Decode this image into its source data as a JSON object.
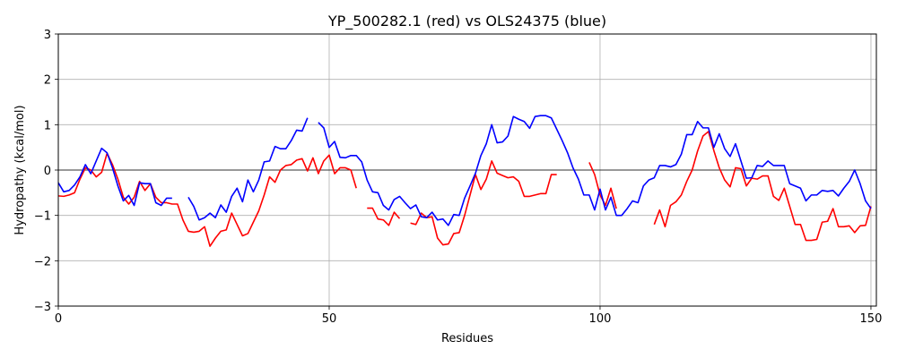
{
  "chart_data": {
    "type": "line",
    "title": "YP_500282.1 (red) vs OLS24375 (blue)",
    "xlabel": "Residues",
    "ylabel": "Hydropathy (kcal/mol)",
    "xlim": [
      0,
      151
    ],
    "ylim": [
      -3,
      3
    ],
    "xticks": [
      0,
      50,
      100,
      150
    ],
    "yticks": [
      -3,
      -2,
      -1,
      0,
      1,
      2,
      3
    ],
    "grid": true,
    "zero_line": true,
    "series": [
      {
        "color": "#ff0000",
        "segments": [
          [
            [
              0,
              -0.57
            ],
            [
              1,
              -0.58
            ],
            [
              2,
              -0.55
            ],
            [
              3,
              -0.5
            ],
            [
              4,
              -0.2
            ],
            [
              5,
              0.05
            ],
            [
              6,
              0.0
            ],
            [
              7,
              -0.15
            ],
            [
              8,
              -0.05
            ],
            [
              9,
              0.37
            ],
            [
              10,
              0.12
            ],
            [
              11,
              -0.2
            ],
            [
              12,
              -0.6
            ],
            [
              13,
              -0.75
            ],
            [
              14,
              -0.6
            ],
            [
              15,
              -0.25
            ],
            [
              16,
              -0.45
            ],
            [
              17,
              -0.3
            ],
            [
              18,
              -0.6
            ],
            [
              19,
              -0.72
            ],
            [
              20,
              -0.72
            ],
            [
              21,
              -0.75
            ],
            [
              22,
              -0.75
            ],
            [
              23,
              -1.1
            ],
            [
              24,
              -1.35
            ],
            [
              25,
              -1.37
            ],
            [
              26,
              -1.35
            ],
            [
              27,
              -1.25
            ],
            [
              28,
              -1.68
            ],
            [
              29,
              -1.5
            ],
            [
              30,
              -1.35
            ],
            [
              31,
              -1.32
            ],
            [
              32,
              -0.95
            ],
            [
              33,
              -1.2
            ],
            [
              34,
              -1.45
            ],
            [
              35,
              -1.4
            ],
            [
              36,
              -1.15
            ],
            [
              37,
              -0.9
            ],
            [
              38,
              -0.55
            ],
            [
              39,
              -0.15
            ],
            [
              40,
              -0.27
            ],
            [
              41,
              0.0
            ],
            [
              42,
              0.1
            ],
            [
              43,
              0.12
            ],
            [
              44,
              0.22
            ],
            [
              45,
              0.25
            ],
            [
              46,
              -0.02
            ],
            [
              47,
              0.27
            ],
            [
              48,
              -0.08
            ],
            [
              49,
              0.2
            ],
            [
              50,
              0.33
            ],
            [
              51,
              -0.08
            ],
            [
              52,
              0.05
            ],
            [
              53,
              0.05
            ],
            [
              54,
              0.0
            ],
            [
              55,
              -0.4
            ]
          ],
          [
            [
              57,
              -0.84
            ],
            [
              58,
              -0.84
            ],
            [
              59,
              -1.08
            ],
            [
              60,
              -1.1
            ],
            [
              61,
              -1.22
            ],
            [
              62,
              -0.93
            ],
            [
              63,
              -1.07
            ]
          ],
          [
            [
              65,
              -1.17
            ],
            [
              66,
              -1.2
            ],
            [
              67,
              -0.95
            ],
            [
              68,
              -1.05
            ],
            [
              69,
              -1.03
            ],
            [
              70,
              -1.5
            ],
            [
              71,
              -1.65
            ],
            [
              72,
              -1.63
            ],
            [
              73,
              -1.4
            ],
            [
              74,
              -1.38
            ],
            [
              75,
              -1.0
            ],
            [
              76,
              -0.55
            ],
            [
              77,
              -0.1
            ],
            [
              78,
              -0.43
            ],
            [
              79,
              -0.2
            ],
            [
              80,
              0.2
            ],
            [
              81,
              -0.07
            ],
            [
              82,
              -0.12
            ],
            [
              83,
              -0.17
            ],
            [
              84,
              -0.15
            ],
            [
              85,
              -0.25
            ],
            [
              86,
              -0.58
            ],
            [
              87,
              -0.58
            ],
            [
              88,
              -0.55
            ],
            [
              89,
              -0.52
            ],
            [
              90,
              -0.52
            ],
            [
              91,
              -0.1
            ],
            [
              92,
              -0.1
            ]
          ],
          [
            [
              98,
              0.17
            ],
            [
              99,
              -0.1
            ],
            [
              100,
              -0.55
            ],
            [
              101,
              -0.78
            ],
            [
              102,
              -0.4
            ],
            [
              103,
              -0.85
            ]
          ],
          [
            [
              110,
              -1.2
            ],
            [
              111,
              -0.88
            ],
            [
              112,
              -1.25
            ],
            [
              113,
              -0.78
            ],
            [
              114,
              -0.7
            ],
            [
              115,
              -0.55
            ],
            [
              116,
              -0.25
            ],
            [
              117,
              0.0
            ],
            [
              118,
              0.42
            ],
            [
              119,
              0.75
            ],
            [
              120,
              0.85
            ],
            [
              121,
              0.43
            ],
            [
              122,
              0.05
            ],
            [
              123,
              -0.22
            ],
            [
              124,
              -0.37
            ],
            [
              125,
              0.05
            ],
            [
              126,
              0.03
            ],
            [
              127,
              -0.35
            ],
            [
              128,
              -0.18
            ],
            [
              129,
              -0.2
            ],
            [
              130,
              -0.13
            ],
            [
              131,
              -0.13
            ],
            [
              132,
              -0.58
            ],
            [
              133,
              -0.67
            ],
            [
              134,
              -0.4
            ],
            [
              135,
              -0.8
            ],
            [
              136,
              -1.2
            ],
            [
              137,
              -1.2
            ],
            [
              138,
              -1.55
            ],
            [
              139,
              -1.55
            ],
            [
              140,
              -1.53
            ],
            [
              141,
              -1.15
            ],
            [
              142,
              -1.13
            ],
            [
              143,
              -0.85
            ],
            [
              144,
              -1.25
            ],
            [
              145,
              -1.25
            ],
            [
              146,
              -1.23
            ],
            [
              147,
              -1.38
            ],
            [
              148,
              -1.23
            ],
            [
              149,
              -1.22
            ],
            [
              150,
              -0.8
            ]
          ]
        ]
      },
      {
        "color": "#0000ff",
        "segments": [
          [
            [
              0,
              -0.28
            ],
            [
              1,
              -0.48
            ],
            [
              2,
              -0.45
            ],
            [
              3,
              -0.33
            ],
            [
              4,
              -0.15
            ],
            [
              5,
              0.12
            ],
            [
              6,
              -0.08
            ],
            [
              7,
              0.2
            ],
            [
              8,
              0.48
            ],
            [
              9,
              0.38
            ],
            [
              10,
              0.05
            ],
            [
              11,
              -0.35
            ],
            [
              12,
              -0.68
            ],
            [
              13,
              -0.56
            ],
            [
              14,
              -0.78
            ],
            [
              15,
              -0.28
            ],
            [
              16,
              -0.3
            ],
            [
              17,
              -0.3
            ],
            [
              18,
              -0.72
            ],
            [
              19,
              -0.78
            ],
            [
              20,
              -0.62
            ],
            [
              21,
              -0.62
            ]
          ],
          [
            [
              24,
              -0.6
            ],
            [
              25,
              -0.8
            ],
            [
              26,
              -1.1
            ],
            [
              27,
              -1.05
            ],
            [
              28,
              -0.95
            ],
            [
              29,
              -1.05
            ],
            [
              30,
              -0.77
            ],
            [
              31,
              -0.93
            ],
            [
              32,
              -0.58
            ],
            [
              33,
              -0.4
            ],
            [
              34,
              -0.7
            ],
            [
              35,
              -0.22
            ],
            [
              36,
              -0.48
            ],
            [
              37,
              -0.22
            ],
            [
              38,
              0.18
            ],
            [
              39,
              0.2
            ],
            [
              40,
              0.52
            ],
            [
              41,
              0.47
            ],
            [
              42,
              0.47
            ],
            [
              43,
              0.65
            ],
            [
              44,
              0.88
            ],
            [
              45,
              0.86
            ],
            [
              46,
              1.15
            ]
          ],
          [
            [
              48,
              1.05
            ],
            [
              49,
              0.93
            ],
            [
              50,
              0.5
            ],
            [
              51,
              0.63
            ],
            [
              52,
              0.28
            ],
            [
              53,
              0.27
            ],
            [
              54,
              0.32
            ],
            [
              55,
              0.32
            ],
            [
              56,
              0.18
            ],
            [
              57,
              -0.22
            ],
            [
              58,
              -0.48
            ],
            [
              59,
              -0.5
            ],
            [
              60,
              -0.78
            ],
            [
              61,
              -0.88
            ],
            [
              62,
              -0.65
            ],
            [
              63,
              -0.58
            ],
            [
              64,
              -0.72
            ],
            [
              65,
              -0.85
            ],
            [
              66,
              -0.77
            ],
            [
              67,
              -1.03
            ],
            [
              68,
              -1.05
            ],
            [
              69,
              -0.93
            ],
            [
              70,
              -1.1
            ],
            [
              71,
              -1.08
            ],
            [
              72,
              -1.22
            ],
            [
              73,
              -0.98
            ],
            [
              74,
              -1.0
            ],
            [
              75,
              -0.62
            ],
            [
              76,
              -0.35
            ],
            [
              77,
              -0.07
            ],
            [
              78,
              0.32
            ],
            [
              79,
              0.58
            ],
            [
              80,
              1.0
            ],
            [
              81,
              0.6
            ],
            [
              82,
              0.62
            ],
            [
              83,
              0.75
            ],
            [
              84,
              1.18
            ],
            [
              85,
              1.12
            ],
            [
              86,
              1.07
            ],
            [
              87,
              0.92
            ],
            [
              88,
              1.18
            ],
            [
              89,
              1.2
            ],
            [
              90,
              1.2
            ],
            [
              91,
              1.15
            ],
            [
              92,
              0.9
            ],
            [
              93,
              0.65
            ],
            [
              94,
              0.38
            ],
            [
              95,
              0.05
            ],
            [
              96,
              -0.2
            ],
            [
              97,
              -0.55
            ],
            [
              98,
              -0.55
            ],
            [
              99,
              -0.88
            ],
            [
              100,
              -0.42
            ],
            [
              101,
              -0.88
            ],
            [
              102,
              -0.6
            ],
            [
              103,
              -1.0
            ],
            [
              104,
              -1.0
            ],
            [
              105,
              -0.85
            ],
            [
              106,
              -0.68
            ],
            [
              107,
              -0.72
            ],
            [
              108,
              -0.35
            ],
            [
              109,
              -0.22
            ],
            [
              110,
              -0.17
            ],
            [
              111,
              0.1
            ],
            [
              112,
              0.1
            ],
            [
              113,
              0.07
            ],
            [
              114,
              0.12
            ],
            [
              115,
              0.35
            ],
            [
              116,
              0.78
            ],
            [
              117,
              0.78
            ],
            [
              118,
              1.07
            ],
            [
              119,
              0.93
            ],
            [
              120,
              0.93
            ],
            [
              121,
              0.5
            ],
            [
              122,
              0.8
            ],
            [
              123,
              0.47
            ],
            [
              124,
              0.3
            ],
            [
              125,
              0.58
            ],
            [
              126,
              0.2
            ],
            [
              127,
              -0.18
            ],
            [
              128,
              -0.17
            ],
            [
              129,
              0.1
            ],
            [
              130,
              0.08
            ],
            [
              131,
              0.2
            ],
            [
              132,
              0.1
            ],
            [
              133,
              0.1
            ],
            [
              134,
              0.1
            ],
            [
              135,
              -0.3
            ],
            [
              136,
              -0.35
            ],
            [
              137,
              -0.4
            ],
            [
              138,
              -0.68
            ],
            [
              139,
              -0.55
            ],
            [
              140,
              -0.55
            ],
            [
              141,
              -0.45
            ],
            [
              142,
              -0.47
            ],
            [
              143,
              -0.45
            ],
            [
              144,
              -0.57
            ],
            [
              145,
              -0.4
            ],
            [
              146,
              -0.25
            ],
            [
              147,
              0.0
            ],
            [
              148,
              -0.3
            ],
            [
              149,
              -0.68
            ],
            [
              150,
              -0.85
            ]
          ]
        ]
      }
    ]
  }
}
